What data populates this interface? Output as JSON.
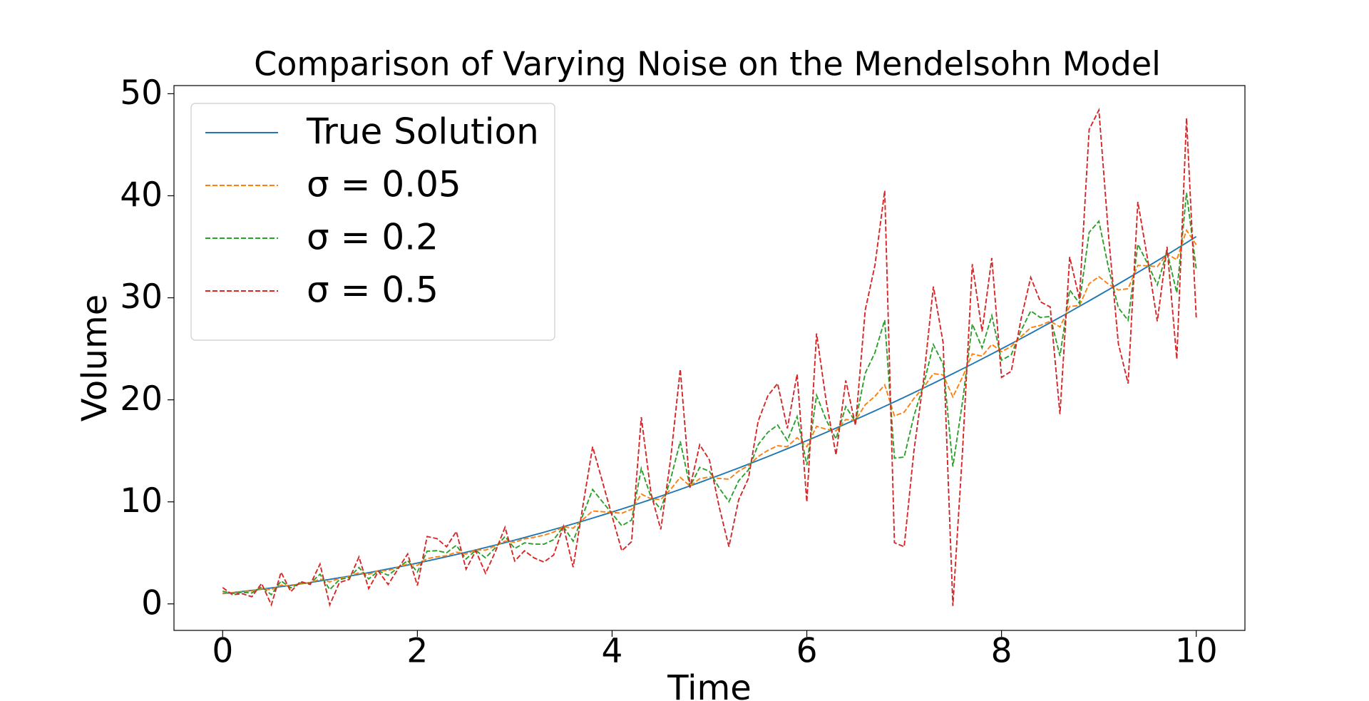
{
  "chart_data": {
    "type": "line",
    "title": "Comparison of Varying Noise on the Mendelsohn Model",
    "xlabel": "Time",
    "ylabel": "Volume",
    "x": [
      0,
      0.1,
      0.2,
      0.3,
      0.4,
      0.5,
      0.6,
      0.7,
      0.8,
      0.9,
      1,
      1.1,
      1.2,
      1.3,
      1.4,
      1.5,
      1.6,
      1.7,
      1.8,
      1.9,
      2,
      2.1,
      2.2,
      2.3,
      2.4,
      2.5,
      2.6,
      2.7,
      2.8,
      2.9,
      3,
      3.1,
      3.2,
      3.3,
      3.4,
      3.5,
      3.6,
      3.7,
      3.8,
      3.9,
      4,
      4.1,
      4.2,
      4.3,
      4.4,
      4.5,
      4.6,
      4.7,
      4.8,
      4.9,
      5,
      5.1,
      5.2,
      5.3,
      5.4,
      5.5,
      5.6,
      5.7,
      5.8,
      5.9,
      6,
      6.1,
      6.2,
      6.3,
      6.4,
      6.5,
      6.6,
      6.7,
      6.8,
      6.9,
      7,
      7.1,
      7.2,
      7.3,
      7.4,
      7.5,
      7.6,
      7.7,
      7.8,
      7.9,
      8,
      8.1,
      8.2,
      8.3,
      8.4,
      8.5,
      8.6,
      8.7,
      8.8,
      8.9,
      9,
      9.1,
      9.2,
      9.3,
      9.4,
      9.5,
      9.6,
      9.7,
      9.8,
      9.9,
      10
    ],
    "series": [
      {
        "name": "True Solution",
        "color": "#1f77b4",
        "dashed": false,
        "values": [
          1,
          1.1,
          1.21,
          1.32,
          1.44,
          1.56,
          1.69,
          1.82,
          1.96,
          2.1,
          2.25,
          2.4,
          2.56,
          2.72,
          2.89,
          3.06,
          3.24,
          3.42,
          3.61,
          3.8,
          4,
          4.2,
          4.41,
          4.62,
          4.84,
          5.06,
          5.29,
          5.52,
          5.76,
          6,
          6.25,
          6.5,
          6.76,
          7.02,
          7.29,
          7.56,
          7.84,
          8.12,
          8.41,
          8.7,
          9,
          9.3,
          9.61,
          9.92,
          10.24,
          10.56,
          10.89,
          11.22,
          11.56,
          11.9,
          12.25,
          12.6,
          12.96,
          13.32,
          13.69,
          14.06,
          14.44,
          14.82,
          15.21,
          15.6,
          16,
          16.4,
          16.81,
          17.22,
          17.64,
          18.06,
          18.49,
          18.92,
          19.36,
          19.8,
          20.25,
          20.7,
          21.16,
          21.62,
          22.09,
          22.56,
          23.04,
          23.52,
          24.01,
          24.5,
          25,
          25.5,
          26.01,
          26.52,
          27.04,
          27.56,
          28.09,
          28.62,
          29.16,
          29.7,
          30.25,
          30.8,
          31.36,
          31.92,
          32.49,
          33.06,
          33.64,
          34.22,
          34.81,
          35.4,
          36
        ]
      },
      {
        "name": "σ = 0.05",
        "color": "#ff7f0e",
        "dashed": true,
        "values": [
          1.06,
          1.08,
          1.19,
          1.26,
          1.5,
          1.39,
          1.83,
          1.76,
          1.98,
          2.08,
          2.42,
          2.15,
          2.51,
          2.69,
          3.06,
          2.9,
          3.24,
          3.27,
          3.59,
          3.91,
          3.78,
          4.44,
          4.61,
          4.72,
          5.07,
          4.89,
          5.28,
          5.27,
          5.69,
          6.15,
          6.05,
          6.37,
          6.53,
          6.73,
          7.04,
          7.56,
          7.42,
          8.27,
          9.11,
          9.03,
          8.96,
          8.89,
          9.26,
          10.76,
          10.3,
          10.23,
          11.21,
          12.4,
          11.54,
          12.27,
          12.44,
          12.29,
          12.22,
          13.01,
          13.55,
          14.44,
          15.04,
          15.5,
          15.41,
          16.29,
          15.4,
          17.41,
          17.11,
          16.96,
          18.07,
          18,
          19.52,
          20.35,
          21.47,
          18.42,
          18.79,
          20.13,
          21.24,
          22.57,
          22.44,
          20.28,
          22.25,
          24.5,
          24.28,
          25.44,
          24.72,
          25.23,
          26.2,
          27.07,
          27.3,
          27.71,
          27.14,
          29.16,
          29.23,
          31.38,
          32.07,
          31.32,
          30.77,
          30.89,
          33.18,
          33.13,
          33.05,
          34.3,
          33.73,
          36.62,
          35.2
        ]
      },
      {
        "name": "σ = 0.2",
        "color": "#2ca02c",
        "dashed": true,
        "values": [
          1.24,
          1.02,
          1.13,
          1.07,
          1.66,
          0.9,
          2.25,
          1.57,
          2.06,
          2.02,
          2.91,
          1.4,
          2.38,
          2.59,
          3.57,
          2.44,
          3.22,
          2.81,
          3.53,
          4.24,
          3.12,
          5.16,
          5.21,
          5.01,
          5.74,
          4.4,
          5.25,
          4.51,
          5.5,
          6.6,
          5.43,
          5.98,
          5.86,
          5.85,
          6.29,
          7.58,
          6.14,
          8.71,
          11.21,
          10.02,
          8.84,
          7.66,
          8.21,
          13.27,
          10.46,
          9.26,
          12.17,
          15.93,
          11.5,
          13.38,
          12.99,
          11.36,
          10.02,
          12.07,
          13.13,
          15.6,
          16.82,
          17.53,
          16.01,
          18.36,
          13.6,
          20.44,
          18.01,
          16.17,
          19.34,
          17.84,
          22.61,
          24.63,
          27.82,
          14.28,
          14.39,
          18.42,
          21.5,
          25.41,
          23.49,
          13.46,
          19.86,
          27.43,
          25.09,
          28.26,
          23.88,
          24.42,
          26.77,
          28.71,
          28.06,
          28.18,
          24.29,
          30.77,
          29.46,
          36.42,
          37.51,
          32.88,
          29.02,
          27.79,
          35.25,
          33.36,
          31.26,
          34.53,
          30.49,
          40.28,
          32.8
        ]
      },
      {
        "name": "σ = 0.5",
        "color": "#d62728",
        "dashed": true,
        "values": [
          1.6,
          0.9,
          1,
          0.7,
          2,
          -0.1,
          3.1,
          1.2,
          2.2,
          1.9,
          3.9,
          -0.1,
          2.1,
          2.4,
          4.6,
          1.5,
          3.2,
          1.9,
          3.4,
          4.9,
          1.8,
          6.6,
          6.4,
          5.6,
          7.1,
          3.4,
          5.2,
          3,
          5.1,
          7.5,
          4.2,
          5.2,
          4.5,
          4.1,
          4.8,
          7.6,
          3.6,
          9.6,
          15.4,
          12,
          8.6,
          5.2,
          6.1,
          18.3,
          10.8,
          7.3,
          14.1,
          23,
          11.4,
          15.6,
          14.1,
          9.5,
          5.6,
          10.2,
          12.3,
          17.9,
          20.4,
          21.6,
          17.2,
          22.5,
          10,
          26.5,
          19.8,
          14.6,
          21.9,
          17.5,
          28.8,
          33.2,
          40.5,
          6,
          5.6,
          15,
          22,
          31.1,
          25.6,
          -0.2,
          15.1,
          33.3,
          26.7,
          33.9,
          22.2,
          22.8,
          27.9,
          32,
          29.6,
          29.1,
          18.6,
          34,
          29.9,
          46.5,
          48.4,
          36,
          25.5,
          21.6,
          39.4,
          33.8,
          27.7,
          35,
          24,
          47.6,
          28
        ]
      }
    ],
    "xlim": [
      -0.5,
      10.5
    ],
    "xticks": [
      0,
      2,
      4,
      6,
      8,
      10
    ],
    "ylim": [
      -2.6,
      50.8
    ],
    "yticks": [
      0,
      10,
      20,
      30,
      40,
      50
    ],
    "grid": false,
    "legend": "upper left"
  }
}
